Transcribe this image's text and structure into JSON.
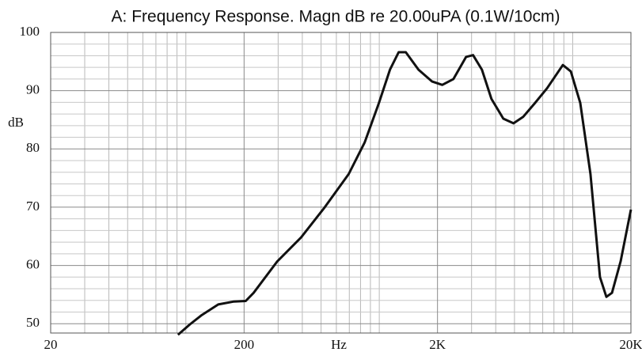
{
  "chart_data": {
    "type": "line",
    "title": "A: Frequency Response. Magn dB re 20.00uPA  (0.1W/10cm)",
    "ylabel": "dB",
    "xlabel": "Hz",
    "xscale": "log",
    "grid": true,
    "xlim": [
      20,
      20000
    ],
    "ylim": [
      48.4,
      100
    ],
    "xticks": [
      20,
      200,
      {
        "value": 2000,
        "label": "2K"
      },
      {
        "value": 20000,
        "label": "20K"
      }
    ],
    "yticks": [
      50,
      60,
      70,
      80,
      90,
      100
    ],
    "xminor_ticks": [
      30,
      40,
      50,
      60,
      70,
      80,
      90,
      100,
      300,
      400,
      500,
      600,
      700,
      800,
      900,
      1000,
      3000,
      4000,
      5000,
      6000,
      7000,
      8000,
      9000,
      10000
    ],
    "yminor_ticks": [
      52,
      54,
      56,
      58,
      62,
      64,
      66,
      68,
      72,
      74,
      76,
      78,
      82,
      84,
      86,
      88,
      92,
      94,
      96,
      98
    ],
    "x": [
      91,
      105,
      121,
      147,
      177,
      204,
      224,
      297,
      394,
      523,
      695,
      840,
      996,
      1135,
      1260,
      1371,
      1595,
      1872,
      2118,
      2417,
      2811,
      3055,
      3394,
      3802,
      4376,
      4945,
      5543,
      6386,
      7362,
      8892,
      9777,
      10940,
      12360,
      13840,
      14930,
      15960,
      17700,
      20000
    ],
    "series": [
      {
        "name": "Magn",
        "color": "#111111",
        "values": [
          48.1,
          49.9,
          51.5,
          53.3,
          53.8,
          53.9,
          55.3,
          60.7,
          64.8,
          70,
          75.7,
          81.1,
          87.9,
          93.6,
          96.6,
          96.6,
          93.6,
          91.6,
          91,
          92,
          95.8,
          96.1,
          93.6,
          88.6,
          85.2,
          84.4,
          85.5,
          87.9,
          90.4,
          94.4,
          93.3,
          87.9,
          75.7,
          58,
          54.6,
          55.3,
          60.7,
          69.6
        ]
      }
    ]
  }
}
